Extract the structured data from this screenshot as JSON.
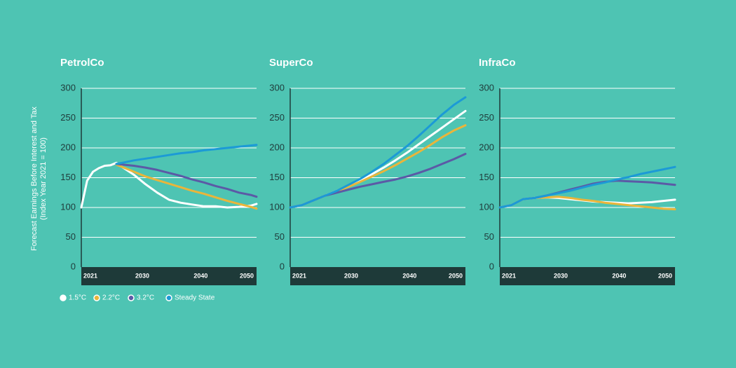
{
  "y_label": [
    "Forecast Earnings Before Interest and Tax",
    "(Index Year 2021 = 100)"
  ],
  "chart_data": [
    {
      "type": "line",
      "title": "PetrolCo",
      "x": [
        2021,
        2022,
        2023,
        2024,
        2025,
        2026,
        2027,
        2028,
        2030,
        2032,
        2034,
        2036,
        2038,
        2040,
        2042,
        2044,
        2046,
        2048,
        2050,
        2051
      ],
      "xlim": [
        2021,
        2051
      ],
      "xticks": [
        2021,
        2030,
        2040,
        2050
      ],
      "ylim": [
        0,
        300
      ],
      "yticks": [
        0,
        50,
        100,
        150,
        200,
        250,
        300
      ],
      "grid": true,
      "series": [
        {
          "name": "1.5°C",
          "color": "#ffffff",
          "values": [
            100,
            145,
            160,
            166,
            170,
            171,
            175,
            168,
            155,
            139,
            125,
            113,
            108,
            105,
            102,
            102,
            100,
            101,
            103,
            106
          ]
        },
        {
          "name": "2.2°C",
          "color": "#eab53a",
          "values": [
            null,
            null,
            null,
            null,
            null,
            null,
            172,
            168,
            160,
            152,
            146,
            140,
            134,
            128,
            123,
            117,
            111,
            106,
            101,
            98
          ]
        },
        {
          "name": "3.2°C",
          "color": "#5b5aa6",
          "values": [
            null,
            null,
            null,
            null,
            null,
            null,
            173,
            172,
            170,
            167,
            163,
            158,
            153,
            147,
            142,
            136,
            131,
            125,
            121,
            118
          ]
        },
        {
          "name": "Steady State",
          "color": "#1c9ad6",
          "values": [
            null,
            null,
            null,
            null,
            null,
            null,
            173,
            175,
            179,
            182,
            185,
            188,
            191,
            193,
            196,
            198,
            200,
            202,
            204,
            205
          ]
        }
      ]
    },
    {
      "type": "line",
      "title": "SuperCo",
      "x": [
        2021,
        2023,
        2025,
        2027,
        2029,
        2031,
        2033,
        2035,
        2037,
        2039,
        2041,
        2043,
        2045,
        2047,
        2049,
        2051
      ],
      "xlim": [
        2021,
        2051
      ],
      "xticks": [
        2021,
        2030,
        2040,
        2050
      ],
      "ylim": [
        0,
        300
      ],
      "yticks": [
        0,
        50,
        100,
        150,
        200,
        250,
        300
      ],
      "grid": true,
      "series": [
        {
          "name": "1.5°C",
          "color": "#ffffff",
          "values": [
            100,
            104,
            112,
            120,
            128,
            137,
            146,
            156,
            167,
            179,
            192,
            206,
            220,
            234,
            248,
            262
          ]
        },
        {
          "name": "2.2°C",
          "color": "#eab53a",
          "values": [
            100,
            104,
            112,
            120,
            127,
            135,
            143,
            152,
            161,
            171,
            182,
            193,
            205,
            218,
            229,
            238
          ]
        },
        {
          "name": "3.2°C",
          "color": "#5b5aa6",
          "values": [
            100,
            104,
            112,
            120,
            125,
            130,
            135,
            139,
            143,
            147,
            152,
            158,
            165,
            173,
            181,
            190
          ]
        },
        {
          "name": "Steady State",
          "color": "#1c9ad6",
          "values": [
            100,
            104,
            112,
            120,
            128,
            138,
            148,
            160,
            173,
            188,
            203,
            220,
            238,
            256,
            272,
            285
          ]
        }
      ]
    },
    {
      "type": "line",
      "title": "InfraCo",
      "x": [
        2021,
        2023,
        2025,
        2027,
        2029,
        2031,
        2033,
        2035,
        2037,
        2039,
        2041,
        2043,
        2045,
        2047,
        2049,
        2051
      ],
      "xlim": [
        2021,
        2051
      ],
      "xticks": [
        2021,
        2030,
        2040,
        2050
      ],
      "ylim": [
        0,
        300
      ],
      "yticks": [
        0,
        50,
        100,
        150,
        200,
        250,
        300
      ],
      "grid": true,
      "series": [
        {
          "name": "1.5°C",
          "color": "#ffffff",
          "values": [
            100,
            104,
            114,
            116,
            117,
            116,
            114,
            112,
            110,
            109,
            108,
            107,
            108,
            109,
            111,
            113
          ]
        },
        {
          "name": "2.2°C",
          "color": "#eab53a",
          "values": [
            100,
            104,
            114,
            116,
            117,
            118,
            116,
            113,
            111,
            108,
            106,
            104,
            102,
            100,
            98,
            97
          ]
        },
        {
          "name": "3.2°C",
          "color": "#5b5aa6",
          "values": [
            100,
            104,
            114,
            116,
            120,
            125,
            130,
            135,
            140,
            143,
            145,
            144,
            143,
            142,
            140,
            138
          ]
        },
        {
          "name": "Steady State",
          "color": "#1c9ad6",
          "values": [
            100,
            104,
            114,
            116,
            120,
            124,
            128,
            133,
            138,
            142,
            147,
            151,
            156,
            160,
            164,
            168
          ]
        }
      ]
    }
  ]
}
